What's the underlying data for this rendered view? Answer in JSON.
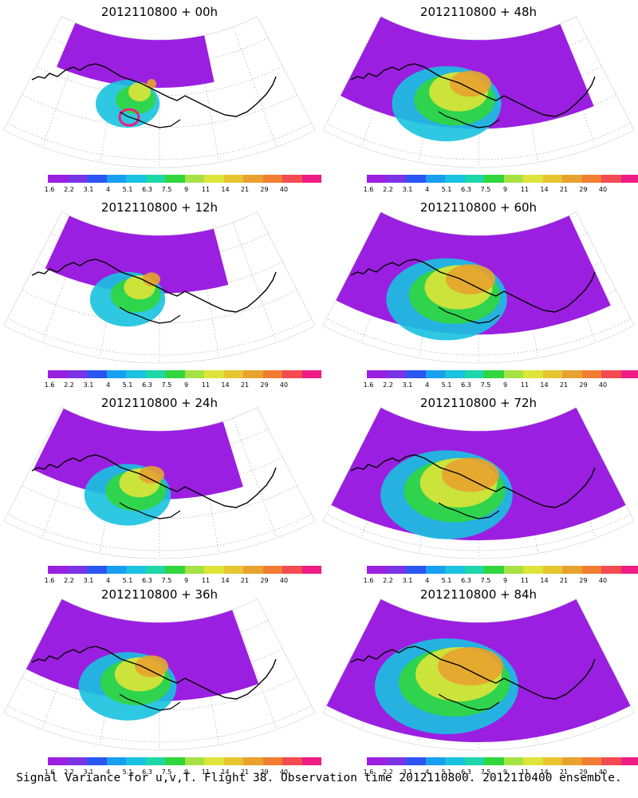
{
  "panels": [
    {
      "title": "2012110800 + 00h",
      "lead_hours": 0
    },
    {
      "title": "2012110800 + 48h",
      "lead_hours": 48
    },
    {
      "title": "2012110800 + 12h",
      "lead_hours": 12
    },
    {
      "title": "2012110800 + 60h",
      "lead_hours": 60
    },
    {
      "title": "2012110800 + 24h",
      "lead_hours": 24
    },
    {
      "title": "2012110800 + 72h",
      "lead_hours": 72
    },
    {
      "title": "2012110800 + 36h",
      "lead_hours": 36
    },
    {
      "title": "2012110800 + 84h",
      "lead_hours": 84
    }
  ],
  "colorbar": {
    "labels": [
      "1.6",
      "2.2",
      "3.1",
      "4",
      "5.1",
      "6.3",
      "7.5",
      "9",
      "11",
      "14",
      "21",
      "29",
      "40"
    ],
    "colors": [
      "#9b1fe0",
      "#7b33e6",
      "#2b55f2",
      "#189ff0",
      "#18c2e0",
      "#1ed7a8",
      "#31d63d",
      "#a7e245",
      "#dde43a",
      "#e7c52f",
      "#e8a22f",
      "#f17d31",
      "#f34b52",
      "#f01c84"
    ]
  },
  "footer": {
    "caption": "Signal Variance for u,v,T. Flight 38. Observation time 2012110800. 2012110400 ensemble."
  }
}
